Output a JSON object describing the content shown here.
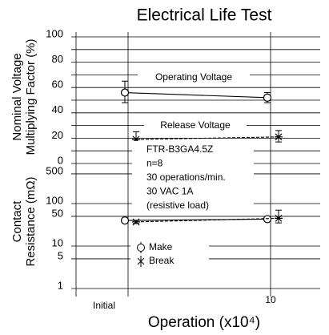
{
  "chart_data": [
    {
      "type": "line",
      "title": "Electrical Life Test",
      "ylabel": [
        "Nominal Voltage",
        "Multiplying Factor (%)"
      ],
      "ylim": [
        0,
        100
      ],
      "yticks": [
        0,
        20,
        40,
        60,
        80,
        100
      ],
      "minor_yticks": [
        10,
        30,
        50,
        70,
        90
      ],
      "grid": true,
      "series": [
        {
          "name": "Operating Voltage",
          "marker": "circle",
          "dash": false,
          "color": "#000000",
          "values": [
            56,
            52
          ],
          "err_low": [
            48,
            48
          ],
          "err_high": [
            65,
            56
          ]
        },
        {
          "name": "Release Voltage",
          "marker": "x",
          "dash": true,
          "color": "#000000",
          "values": [
            19,
            21
          ],
          "err_low": [
            14,
            17
          ],
          "err_high": [
            25,
            26
          ]
        }
      ],
      "annotations": [
        "FTR-B3GA4.5Z",
        "n=8",
        "30 operations/min.",
        "30 VAC 1A",
        "(resistive load)"
      ]
    },
    {
      "type": "line",
      "ylabel": [
        "Contact",
        "Resistance (mΩ)"
      ],
      "xlabel": "Operation (x10⁴)",
      "log": true,
      "categories": [
        "Initial",
        "10"
      ],
      "ylim": [
        1,
        1000
      ],
      "yticks": [
        1,
        5,
        10,
        50,
        100,
        500
      ],
      "grid": true,
      "series": [
        {
          "name": "Make",
          "marker": "circle",
          "dash": false,
          "color": "#000000",
          "values": [
            40,
            43
          ],
          "err_low": [
            38,
            40
          ],
          "err_high": [
            42,
            47
          ]
        },
        {
          "name": "Break",
          "marker": "x",
          "dash": true,
          "color": "#000000",
          "values": [
            37,
            45
          ],
          "err_low": [
            34,
            35
          ],
          "err_high": [
            40,
            70
          ]
        }
      ]
    }
  ]
}
